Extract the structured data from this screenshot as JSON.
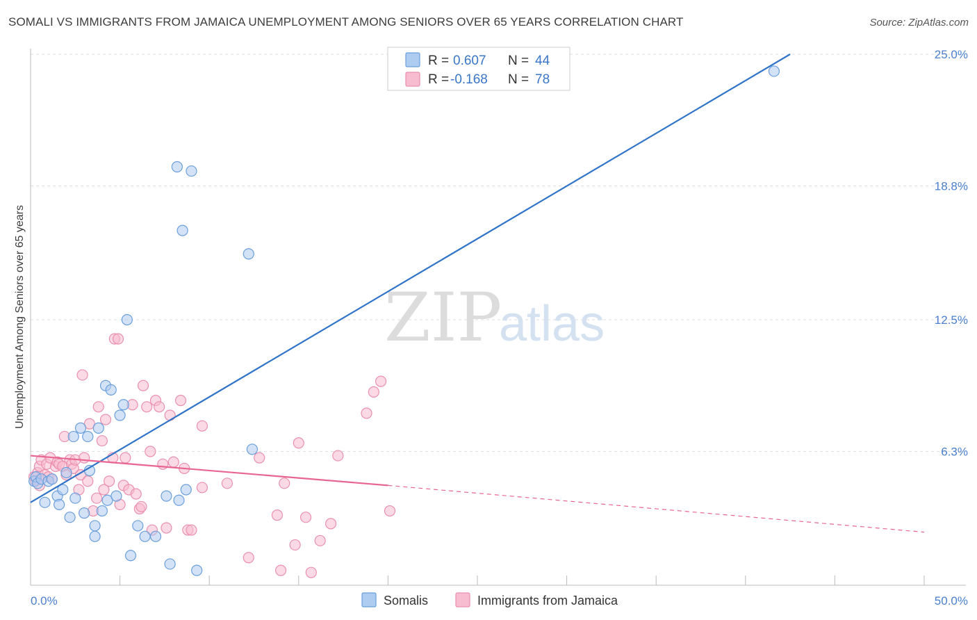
{
  "title": "SOMALI VS IMMIGRANTS FROM JAMAICA UNEMPLOYMENT AMONG SENIORS OVER 65 YEARS CORRELATION CHART",
  "source": "Source: ZipAtlas.com",
  "watermark": {
    "zip": "ZIP",
    "atlas": "atlas"
  },
  "legend_box": [
    {
      "r_label": "R =",
      "r_value": "0.607",
      "n_label": "N =",
      "n_value": "44"
    },
    {
      "r_label": "R =",
      "r_value": "-0.168",
      "n_label": "N =",
      "n_value": "78"
    }
  ],
  "colors": {
    "somali_fill": "#aecbf0",
    "somali_stroke": "#6a9fdc",
    "somali_line": "#2f74c8",
    "jamaica_fill": "#f7bcd0",
    "jamaica_stroke": "#ea8fae",
    "jamaica_line": "#e8658f",
    "tick_text": "#4a7fcf",
    "grid": "#dddddd"
  },
  "chart_data": {
    "type": "scatter",
    "title": "SOMALI VS IMMIGRANTS FROM JAMAICA UNEMPLOYMENT AMONG SENIORS OVER 65 YEARS CORRELATION CHART",
    "xlabel": "",
    "ylabel": "Unemployment Among Seniors over 65 years",
    "xlim": [
      0,
      50
    ],
    "ylim": [
      0,
      25
    ],
    "x_tick_labels": [
      "0.0%",
      "50.0%"
    ],
    "y_ticks": [
      6.3,
      12.5,
      18.8,
      25.0
    ],
    "y_tick_labels": [
      "6.3%",
      "12.5%",
      "18.8%",
      "25.0%"
    ],
    "series": [
      {
        "name": "Somalis",
        "R": 0.607,
        "N": 44,
        "trend": {
          "x0": 0,
          "y0": 3.9,
          "x1": 42.5,
          "y1": 25.0
        },
        "points": [
          [
            0.2,
            4.9
          ],
          [
            0.3,
            5.1
          ],
          [
            0.4,
            4.8
          ],
          [
            0.6,
            5.0
          ],
          [
            0.8,
            3.9
          ],
          [
            1.0,
            4.9
          ],
          [
            1.2,
            5.0
          ],
          [
            1.5,
            4.2
          ],
          [
            1.6,
            3.8
          ],
          [
            1.8,
            4.5
          ],
          [
            2.0,
            5.3
          ],
          [
            2.2,
            3.2
          ],
          [
            2.4,
            7.0
          ],
          [
            2.5,
            4.1
          ],
          [
            2.8,
            7.4
          ],
          [
            3.0,
            3.4
          ],
          [
            3.2,
            7.0
          ],
          [
            3.3,
            5.4
          ],
          [
            3.6,
            2.3
          ],
          [
            3.6,
            2.8
          ],
          [
            3.8,
            7.4
          ],
          [
            4.0,
            3.5
          ],
          [
            4.2,
            9.4
          ],
          [
            4.3,
            4.0
          ],
          [
            4.5,
            9.2
          ],
          [
            4.8,
            4.2
          ],
          [
            5.0,
            8.0
          ],
          [
            5.2,
            8.5
          ],
          [
            5.4,
            12.5
          ],
          [
            5.6,
            1.4
          ],
          [
            6.0,
            2.8
          ],
          [
            6.4,
            2.3
          ],
          [
            7.0,
            2.3
          ],
          [
            7.6,
            4.2
          ],
          [
            7.8,
            1.0
          ],
          [
            8.2,
            19.7
          ],
          [
            8.3,
            4.0
          ],
          [
            8.5,
            16.7
          ],
          [
            8.7,
            4.5
          ],
          [
            9.0,
            19.5
          ],
          [
            9.3,
            0.7
          ],
          [
            12.2,
            15.6
          ],
          [
            12.4,
            6.4
          ],
          [
            41.6,
            24.2
          ]
        ]
      },
      {
        "name": "Immigrants from Jamaica",
        "R": -0.168,
        "N": 78,
        "trend": {
          "x0": 0,
          "y0": 6.1,
          "x1": 20,
          "y1": 4.7
        },
        "trend_dashed": {
          "x0": 20,
          "y0": 4.7,
          "x1": 50,
          "y1": 2.5
        },
        "points": [
          [
            0.2,
            5.1
          ],
          [
            0.3,
            4.9
          ],
          [
            0.4,
            5.3
          ],
          [
            0.5,
            5.6
          ],
          [
            0.6,
            5.9
          ],
          [
            0.8,
            5.2
          ],
          [
            0.9,
            5.7
          ],
          [
            1.0,
            5.1
          ],
          [
            1.1,
            6.0
          ],
          [
            1.2,
            5.0
          ],
          [
            1.4,
            5.6
          ],
          [
            1.5,
            5.8
          ],
          [
            1.6,
            5.7
          ],
          [
            1.8,
            5.6
          ],
          [
            1.9,
            7.0
          ],
          [
            2.0,
            5.2
          ],
          [
            2.2,
            5.9
          ],
          [
            2.3,
            5.7
          ],
          [
            2.4,
            5.5
          ],
          [
            2.5,
            5.9
          ],
          [
            2.7,
            4.5
          ],
          [
            2.8,
            5.2
          ],
          [
            2.9,
            9.9
          ],
          [
            3.0,
            6.0
          ],
          [
            3.2,
            4.9
          ],
          [
            3.3,
            7.6
          ],
          [
            3.5,
            3.5
          ],
          [
            3.7,
            4.1
          ],
          [
            3.8,
            8.4
          ],
          [
            4.0,
            6.8
          ],
          [
            4.1,
            4.5
          ],
          [
            4.2,
            7.8
          ],
          [
            4.4,
            4.9
          ],
          [
            4.6,
            6.0
          ],
          [
            4.7,
            11.6
          ],
          [
            4.9,
            11.6
          ],
          [
            5.0,
            3.8
          ],
          [
            5.2,
            4.7
          ],
          [
            5.3,
            6.0
          ],
          [
            5.5,
            4.5
          ],
          [
            5.7,
            8.5
          ],
          [
            5.9,
            4.3
          ],
          [
            6.1,
            3.6
          ],
          [
            6.2,
            3.7
          ],
          [
            6.3,
            9.4
          ],
          [
            6.5,
            8.4
          ],
          [
            6.7,
            6.3
          ],
          [
            6.8,
            2.6
          ],
          [
            7.0,
            8.7
          ],
          [
            7.2,
            8.4
          ],
          [
            7.4,
            5.7
          ],
          [
            7.6,
            2.7
          ],
          [
            7.8,
            8.0
          ],
          [
            8.0,
            5.8
          ],
          [
            8.4,
            8.7
          ],
          [
            8.6,
            5.5
          ],
          [
            8.8,
            2.6
          ],
          [
            9.0,
            2.6
          ],
          [
            9.6,
            4.6
          ],
          [
            9.6,
            7.5
          ],
          [
            11.0,
            4.8
          ],
          [
            12.2,
            1.3
          ],
          [
            12.8,
            6.0
          ],
          [
            13.8,
            3.3
          ],
          [
            14.0,
            0.7
          ],
          [
            14.2,
            4.8
          ],
          [
            14.8,
            1.9
          ],
          [
            15.0,
            6.7
          ],
          [
            15.4,
            3.2
          ],
          [
            15.7,
            0.6
          ],
          [
            16.2,
            2.1
          ],
          [
            16.8,
            2.9
          ],
          [
            17.2,
            6.1
          ],
          [
            18.8,
            8.1
          ],
          [
            19.2,
            9.1
          ],
          [
            19.6,
            9.6
          ],
          [
            20.1,
            3.5
          ],
          [
            0.5,
            4.7
          ]
        ]
      }
    ]
  },
  "bottom_legend": [
    {
      "label": "Somalis"
    },
    {
      "label": "Immigrants from Jamaica"
    }
  ]
}
